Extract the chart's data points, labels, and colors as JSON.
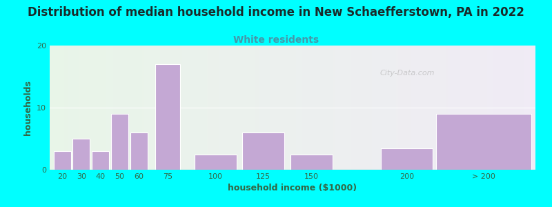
{
  "title": "Distribution of median household income in New Schaefferstown, PA in 2022",
  "subtitle": "White residents",
  "xlabel": "household income ($1000)",
  "ylabel": "households",
  "title_fontsize": 12,
  "subtitle_fontsize": 10,
  "subtitle_color": "#4499aa",
  "bar_color": "#c4a8d4",
  "bar_edge_color": "#ffffff",
  "background_color": "#00ffff",
  "ylim": [
    0,
    20
  ],
  "yticks": [
    0,
    10,
    20
  ],
  "categories": [
    "20",
    "30",
    "40",
    "50",
    "60",
    "75",
    "100",
    "125",
    "150",
    "200",
    "> 200"
  ],
  "values": [
    3,
    5,
    3,
    9,
    6,
    17,
    2.5,
    6,
    2.5,
    3.5,
    9
  ],
  "positions": [
    20,
    30,
    40,
    50,
    60,
    75,
    100,
    125,
    150,
    200,
    240
  ],
  "widths": [
    9,
    9,
    9,
    9,
    9,
    13,
    22,
    22,
    22,
    27,
    50
  ],
  "watermark": "City-Data.com",
  "ylabel_color": "#336644",
  "xlabel_color": "#336644",
  "tick_color": "#336644"
}
